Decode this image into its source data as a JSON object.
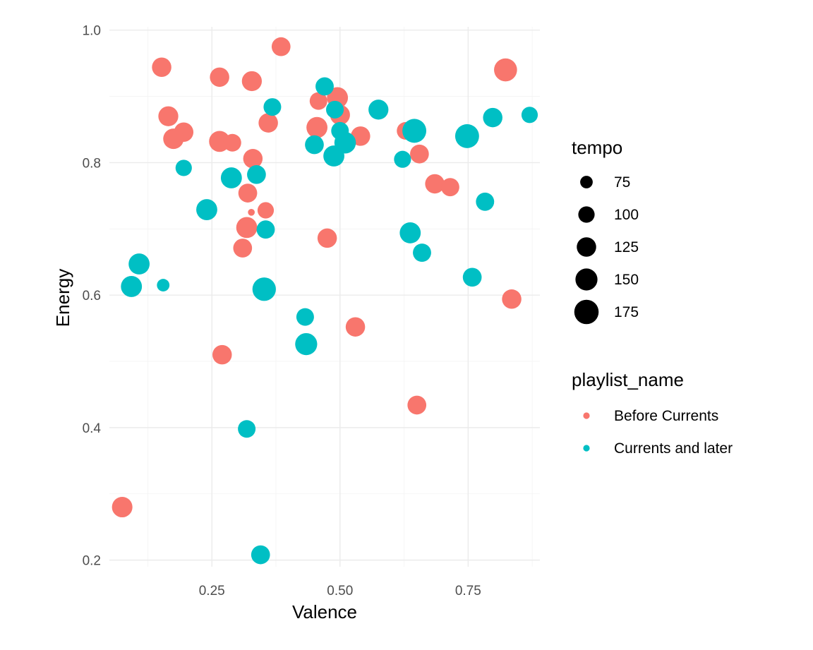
{
  "chart_data": {
    "type": "scatter",
    "xlabel": "Valence",
    "ylabel": "Energy",
    "xlim": [
      0.05,
      0.89
    ],
    "ylim": [
      0.19,
      1.005
    ],
    "x_ticks": [
      0.25,
      0.5,
      0.75
    ],
    "x_tick_labels": [
      "0.25",
      "0.50",
      "0.75"
    ],
    "y_ticks": [
      0.2,
      0.4,
      0.6,
      0.8,
      1.0
    ],
    "y_tick_labels": [
      "0.2",
      "0.4",
      "0.6",
      "0.8",
      "1.0"
    ],
    "grid": true,
    "size_legend": {
      "title": "tempo",
      "values": [
        75,
        100,
        125,
        150,
        175
      ],
      "labels": [
        "75",
        "100",
        "125",
        "150",
        "175"
      ]
    },
    "color_legend": {
      "title": "playlist_name",
      "placement": "right",
      "entries": [
        {
          "name": "Before Currents",
          "color": "#F8766D"
        },
        {
          "name": "Currents and later",
          "color": "#00BFC4"
        }
      ]
    },
    "series": [
      {
        "name": "Before Currents",
        "color": "#F8766D",
        "points": [
          {
            "x": 0.385,
            "y": 0.975,
            "tempo": 120
          },
          {
            "x": 0.152,
            "y": 0.944,
            "tempo": 125
          },
          {
            "x": 0.265,
            "y": 0.929,
            "tempo": 125
          },
          {
            "x": 0.328,
            "y": 0.923,
            "tempo": 130
          },
          {
            "x": 0.823,
            "y": 0.94,
            "tempo": 160
          },
          {
            "x": 0.495,
            "y": 0.898,
            "tempo": 140
          },
          {
            "x": 0.458,
            "y": 0.893,
            "tempo": 110
          },
          {
            "x": 0.165,
            "y": 0.87,
            "tempo": 130
          },
          {
            "x": 0.195,
            "y": 0.846,
            "tempo": 125
          },
          {
            "x": 0.175,
            "y": 0.836,
            "tempo": 135
          },
          {
            "x": 0.265,
            "y": 0.832,
            "tempo": 140
          },
          {
            "x": 0.29,
            "y": 0.83,
            "tempo": 110
          },
          {
            "x": 0.36,
            "y": 0.86,
            "tempo": 125
          },
          {
            "x": 0.455,
            "y": 0.853,
            "tempo": 140
          },
          {
            "x": 0.5,
            "y": 0.872,
            "tempo": 130
          },
          {
            "x": 0.54,
            "y": 0.84,
            "tempo": 125
          },
          {
            "x": 0.628,
            "y": 0.848,
            "tempo": 110
          },
          {
            "x": 0.655,
            "y": 0.813,
            "tempo": 120
          },
          {
            "x": 0.33,
            "y": 0.806,
            "tempo": 125
          },
          {
            "x": 0.32,
            "y": 0.754,
            "tempo": 120
          },
          {
            "x": 0.685,
            "y": 0.768,
            "tempo": 125
          },
          {
            "x": 0.715,
            "y": 0.763,
            "tempo": 115
          },
          {
            "x": 0.327,
            "y": 0.725,
            "tempo": 50
          },
          {
            "x": 0.355,
            "y": 0.728,
            "tempo": 100
          },
          {
            "x": 0.318,
            "y": 0.702,
            "tempo": 140
          },
          {
            "x": 0.475,
            "y": 0.686,
            "tempo": 125
          },
          {
            "x": 0.31,
            "y": 0.671,
            "tempo": 120
          },
          {
            "x": 0.835,
            "y": 0.594,
            "tempo": 125
          },
          {
            "x": 0.53,
            "y": 0.552,
            "tempo": 125
          },
          {
            "x": 0.27,
            "y": 0.51,
            "tempo": 125
          },
          {
            "x": 0.65,
            "y": 0.434,
            "tempo": 120
          },
          {
            "x": 0.075,
            "y": 0.28,
            "tempo": 135
          }
        ]
      },
      {
        "name": "Currents and later",
        "color": "#00BFC4",
        "points": [
          {
            "x": 0.47,
            "y": 0.915,
            "tempo": 115
          },
          {
            "x": 0.368,
            "y": 0.884,
            "tempo": 110
          },
          {
            "x": 0.575,
            "y": 0.88,
            "tempo": 130
          },
          {
            "x": 0.49,
            "y": 0.88,
            "tempo": 110
          },
          {
            "x": 0.798,
            "y": 0.868,
            "tempo": 125
          },
          {
            "x": 0.87,
            "y": 0.872,
            "tempo": 100
          },
          {
            "x": 0.645,
            "y": 0.848,
            "tempo": 170
          },
          {
            "x": 0.748,
            "y": 0.84,
            "tempo": 170
          },
          {
            "x": 0.5,
            "y": 0.848,
            "tempo": 110
          },
          {
            "x": 0.51,
            "y": 0.83,
            "tempo": 145
          },
          {
            "x": 0.45,
            "y": 0.827,
            "tempo": 120
          },
          {
            "x": 0.488,
            "y": 0.81,
            "tempo": 140
          },
          {
            "x": 0.622,
            "y": 0.805,
            "tempo": 105
          },
          {
            "x": 0.195,
            "y": 0.792,
            "tempo": 100
          },
          {
            "x": 0.288,
            "y": 0.777,
            "tempo": 140
          },
          {
            "x": 0.337,
            "y": 0.782,
            "tempo": 120
          },
          {
            "x": 0.783,
            "y": 0.741,
            "tempo": 115
          },
          {
            "x": 0.24,
            "y": 0.729,
            "tempo": 140
          },
          {
            "x": 0.355,
            "y": 0.699,
            "tempo": 115
          },
          {
            "x": 0.637,
            "y": 0.694,
            "tempo": 140
          },
          {
            "x": 0.66,
            "y": 0.664,
            "tempo": 115
          },
          {
            "x": 0.108,
            "y": 0.647,
            "tempo": 140
          },
          {
            "x": 0.093,
            "y": 0.613,
            "tempo": 140
          },
          {
            "x": 0.155,
            "y": 0.615,
            "tempo": 75
          },
          {
            "x": 0.352,
            "y": 0.609,
            "tempo": 165
          },
          {
            "x": 0.758,
            "y": 0.627,
            "tempo": 120
          },
          {
            "x": 0.432,
            "y": 0.567,
            "tempo": 110
          },
          {
            "x": 0.434,
            "y": 0.526,
            "tempo": 150
          },
          {
            "x": 0.318,
            "y": 0.398,
            "tempo": 110
          },
          {
            "x": 0.345,
            "y": 0.208,
            "tempo": 120
          }
        ]
      }
    ]
  }
}
